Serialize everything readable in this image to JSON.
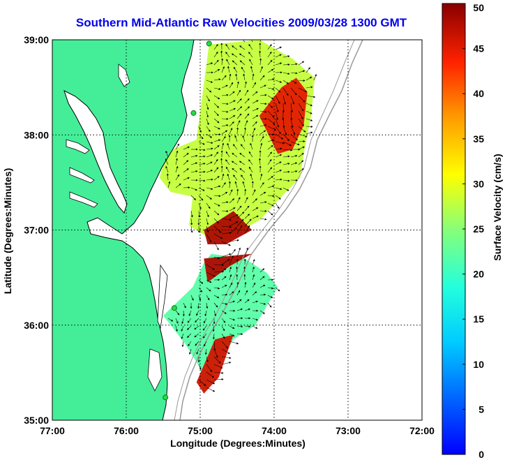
{
  "title": "Southern Mid-Atlantic Raw Velocities 2009/03/28 1300 GMT",
  "x_axis": {
    "label": "Longitude (Degrees:Minutes)",
    "ticks": [
      "77:00",
      "76:00",
      "75:00",
      "74:00",
      "73:00",
      "72:00"
    ]
  },
  "y_axis": {
    "label": "Latitude (Degrees:Minutes)",
    "ticks": [
      "39:00",
      "38:00",
      "37:00",
      "36:00",
      "35:00"
    ]
  },
  "colorbar": {
    "label": "Surface Velocity (cm/s)",
    "ticks": [
      "50",
      "45",
      "40",
      "35",
      "30",
      "25",
      "20",
      "15",
      "10",
      "5",
      "0"
    ],
    "range": [
      0,
      50
    ],
    "colormap": "jet"
  },
  "colors": {
    "land": "#44ee99",
    "coastline": "#000000",
    "bathymetry": "#999999",
    "station": "#22dd44",
    "arrow": "#000000"
  },
  "chart_data": {
    "type": "heatmap",
    "title": "Southern Mid-Atlantic Raw Velocities 2009/03/28 1300 GMT",
    "xlabel": "Longitude (Degrees:Minutes)",
    "ylabel": "Latitude (Degrees:Minutes)",
    "xlim": [
      -77,
      -72
    ],
    "ylim": [
      35,
      39
    ],
    "grid": true,
    "colorbar_label": "Surface Velocity (cm/s)",
    "colorbar_range": [
      0,
      50
    ],
    "stations": [
      {
        "lon": -74.88,
        "lat": 38.96
      },
      {
        "lon": -75.09,
        "lat": 38.23
      },
      {
        "lon": -75.35,
        "lat": 36.18
      },
      {
        "lon": -75.47,
        "lat": 35.24
      }
    ],
    "regions": [
      {
        "name": "north",
        "speed_cm_s": 28,
        "lon": [
          -75.55,
          -75.45,
          -75.05,
          -74.88,
          -74.2,
          -73.75,
          -73.45,
          -73.5,
          -73.6,
          -73.65,
          -73.9,
          -74.2,
          -74.45,
          -74.6,
          -74.85,
          -75.15,
          -75.1,
          -75.4,
          -75.55
        ],
        "lat": [
          37.55,
          37.82,
          37.95,
          38.95,
          39.0,
          38.8,
          38.6,
          38.2,
          37.8,
          37.55,
          37.35,
          37.1,
          37.0,
          36.88,
          36.9,
          37.05,
          37.35,
          37.4,
          37.55
        ]
      },
      {
        "name": "south",
        "speed_cm_s": 22,
        "lon": [
          -75.5,
          -75.1,
          -74.95,
          -74.85,
          -74.4,
          -74.1,
          -73.95,
          -74.25,
          -74.55,
          -74.85,
          -74.95,
          -75.0,
          -75.2,
          -75.5
        ],
        "lat": [
          36.1,
          36.4,
          36.65,
          36.75,
          36.7,
          36.55,
          36.4,
          36.0,
          35.85,
          35.45,
          35.28,
          35.55,
          35.8,
          36.1
        ]
      },
      {
        "name": "fast-offshore-north",
        "speed_cm_s": 45,
        "lon": [
          -74.2,
          -73.9,
          -73.7,
          -73.55,
          -73.6,
          -73.75,
          -73.95
        ],
        "lat": [
          38.2,
          38.5,
          38.6,
          38.45,
          38.1,
          37.85,
          37.8
        ]
      },
      {
        "name": "fast-mid-shelf",
        "speed_cm_s": 48,
        "lon": [
          -74.95,
          -74.55,
          -74.3,
          -74.65,
          -74.9
        ],
        "lat": [
          37.0,
          37.2,
          37.0,
          36.85,
          36.85
        ]
      },
      {
        "name": "fast-upper-south",
        "speed_cm_s": 48,
        "lon": [
          -74.95,
          -74.3,
          -74.6,
          -74.9
        ],
        "lat": [
          36.7,
          36.75,
          36.62,
          36.45
        ]
      },
      {
        "name": "fast-lower-south",
        "speed_cm_s": 46,
        "lon": [
          -74.8,
          -74.55,
          -74.75,
          -74.95,
          -75.05
        ],
        "lat": [
          35.85,
          35.9,
          35.45,
          35.28,
          35.4
        ]
      }
    ]
  }
}
